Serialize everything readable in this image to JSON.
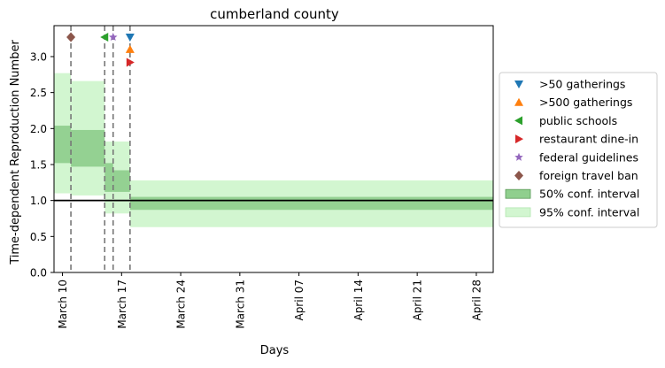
{
  "chart_data": {
    "type": "step-band",
    "title": "cumberland county",
    "xlabel": "Days",
    "ylabel": "Time-dependent Reproduction Number",
    "x_axis": {
      "type": "date",
      "range": [
        "2020-03-09",
        "2020-04-30"
      ],
      "ticks": [
        "2020-03-10",
        "2020-03-17",
        "2020-03-24",
        "2020-03-31",
        "2020-04-07",
        "2020-04-14",
        "2020-04-21",
        "2020-04-28"
      ],
      "tick_labels": [
        "March 10",
        "March 17",
        "March 24",
        "March 31",
        "April 07",
        "April 14",
        "April 21",
        "April 28"
      ]
    },
    "y_axis": {
      "range": [
        0,
        3.43
      ],
      "ticks": [
        0.0,
        0.5,
        1.0,
        1.5,
        2.0,
        2.5,
        3.0
      ],
      "tick_labels": [
        "0.0",
        "0.5",
        "1.0",
        "1.5",
        "2.0",
        "2.5",
        "3.0"
      ]
    },
    "grid": false,
    "reference_line": 1.0,
    "reference_color": "#000000",
    "segments": [
      {
        "start": "2020-03-09",
        "end": "2020-03-11",
        "ci50": [
          1.52,
          2.04
        ],
        "ci95": [
          1.1,
          2.77
        ]
      },
      {
        "start": "2020-03-11",
        "end": "2020-03-15",
        "ci50": [
          1.47,
          1.98
        ],
        "ci95": [
          1.07,
          2.66
        ]
      },
      {
        "start": "2020-03-15",
        "end": "2020-03-16",
        "ci50": [
          1.12,
          1.52
        ],
        "ci95": [
          0.82,
          1.82
        ]
      },
      {
        "start": "2020-03-16",
        "end": "2020-03-18",
        "ci50": [
          1.12,
          1.42
        ],
        "ci95": [
          0.82,
          1.82
        ]
      },
      {
        "start": "2020-03-18",
        "end": "2020-04-30",
        "ci50": [
          0.87,
          1.05
        ],
        "ci95": [
          0.63,
          1.28
        ]
      }
    ],
    "interventions": [
      {
        "name": ">50 gatherings",
        "date": "2020-03-18",
        "y": 3.27,
        "marker": "triangle-down",
        "color": "#1f77b4"
      },
      {
        "name": ">500 gatherings",
        "date": "2020-03-18",
        "y": 3.1,
        "marker": "triangle-up",
        "color": "#ff7f0e"
      },
      {
        "name": "public schools",
        "date": "2020-03-15",
        "y": 3.27,
        "marker": "triangle-left",
        "color": "#2ca02c"
      },
      {
        "name": "restaurant dine-in",
        "date": "2020-03-18",
        "y": 2.92,
        "marker": "triangle-right",
        "color": "#d62728"
      },
      {
        "name": "federal guidelines",
        "date": "2020-03-16",
        "y": 3.27,
        "marker": "star",
        "color": "#9467bd"
      },
      {
        "name": "foreign travel ban",
        "date": "2020-03-11",
        "y": 3.27,
        "marker": "diamond",
        "color": "#8c564b"
      }
    ],
    "legend": {
      "placement": "right-outside",
      "entries": [
        {
          "label": ">50 gatherings",
          "kind": "marker",
          "marker": "triangle-down",
          "color": "#1f77b4"
        },
        {
          "label": ">500 gatherings",
          "kind": "marker",
          "marker": "triangle-up",
          "color": "#ff7f0e"
        },
        {
          "label": "public schools",
          "kind": "marker",
          "marker": "triangle-left",
          "color": "#2ca02c"
        },
        {
          "label": "restaurant dine-in",
          "kind": "marker",
          "marker": "triangle-right",
          "color": "#d62728"
        },
        {
          "label": "federal guidelines",
          "kind": "marker",
          "marker": "star",
          "color": "#9467bd"
        },
        {
          "label": "foreign travel ban",
          "kind": "marker",
          "marker": "diamond",
          "color": "#8c564b"
        },
        {
          "label": "50% conf. interval",
          "kind": "patch",
          "color": "#90cf8e",
          "edge": "#5a9a58"
        },
        {
          "label": "95% conf. interval",
          "kind": "patch",
          "color": "#d2f6d0",
          "edge": "#b2e6b0"
        }
      ]
    },
    "colors": {
      "ci50": "#90cf8e",
      "ci95": "#d2f6d0",
      "vline": "#777777"
    }
  }
}
